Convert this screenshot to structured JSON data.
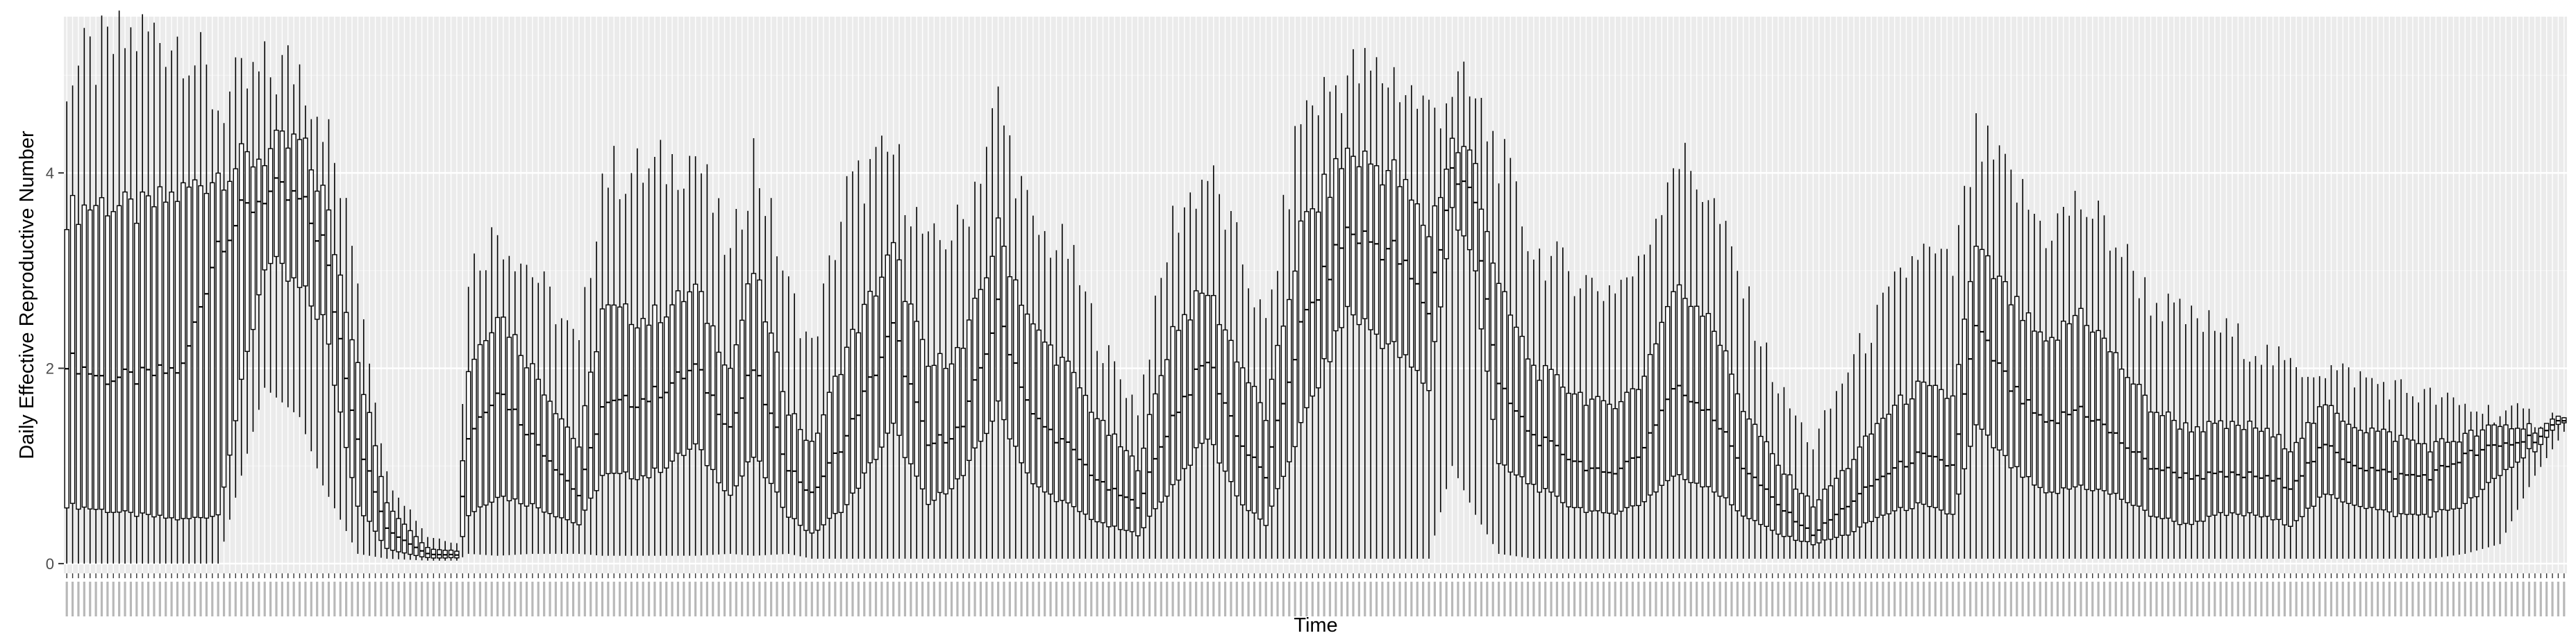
{
  "chart_data": {
    "type": "boxplot",
    "title": "",
    "xlabel": "Time",
    "ylabel": "Daily Effective Reproductive Number",
    "ylim": [
      -0.1,
      5.6
    ],
    "y_ticks": [
      0,
      2,
      4
    ],
    "x_tick_labels": "unreadable (one per day, rotated, overprinted)",
    "grid": true,
    "n_days_approx": 430,
    "series": [
      {
        "name": "",
        "color": "#000000",
        "keypoints": [
          {
            "i": 0,
            "q0": 0.0,
            "q1": 0.6,
            "med": 2.1,
            "q3": 3.6,
            "q4": 5.0
          },
          {
            "i": 6,
            "q0": 0.0,
            "q1": 0.55,
            "med": 1.9,
            "q3": 3.7,
            "q4": 5.2
          },
          {
            "i": 12,
            "q0": 0.0,
            "q1": 0.5,
            "med": 1.9,
            "q3": 3.6,
            "q4": 5.4
          },
          {
            "i": 20,
            "q0": 0.0,
            "q1": 0.45,
            "med": 2.0,
            "q3": 3.8,
            "q4": 5.4
          },
          {
            "i": 26,
            "q0": 0.0,
            "q1": 0.5,
            "med": 3.3,
            "q3": 4.0,
            "q4": 4.7
          },
          {
            "i": 34,
            "q0": 1.8,
            "q1": 3.1,
            "med": 3.8,
            "q3": 4.2,
            "q4": 5.0
          },
          {
            "i": 40,
            "q0": 1.5,
            "q1": 2.8,
            "med": 3.7,
            "q3": 4.3,
            "q4": 5.1
          },
          {
            "i": 44,
            "q0": 0.8,
            "q1": 2.5,
            "med": 3.3,
            "q3": 3.8,
            "q4": 4.6
          },
          {
            "i": 50,
            "q0": 0.1,
            "q1": 0.6,
            "med": 1.3,
            "q3": 2.1,
            "q4": 3.0
          },
          {
            "i": 55,
            "q0": 0.05,
            "q1": 0.15,
            "med": 0.35,
            "q3": 0.6,
            "q4": 0.9
          },
          {
            "i": 62,
            "q0": 0.03,
            "q1": 0.06,
            "med": 0.1,
            "q3": 0.16,
            "q4": 0.28
          },
          {
            "i": 67,
            "q0": 0.03,
            "q1": 0.06,
            "med": 0.09,
            "q3": 0.13,
            "q4": 0.22
          },
          {
            "i": 69,
            "q0": 0.1,
            "q1": 0.5,
            "med": 1.3,
            "q3": 2.0,
            "q4": 3.0
          },
          {
            "i": 74,
            "q0": 0.08,
            "q1": 0.7,
            "med": 1.8,
            "q3": 2.6,
            "q4": 3.4
          },
          {
            "i": 80,
            "q0": 0.1,
            "q1": 0.6,
            "med": 1.3,
            "q3": 2.0,
            "q4": 3.0
          },
          {
            "i": 88,
            "q0": 0.1,
            "q1": 0.4,
            "med": 0.7,
            "q3": 1.2,
            "q4": 2.2
          },
          {
            "i": 92,
            "q0": 0.08,
            "q1": 0.9,
            "med": 1.6,
            "q3": 2.6,
            "q4": 4.0
          },
          {
            "i": 100,
            "q0": 0.08,
            "q1": 0.9,
            "med": 1.7,
            "q3": 2.5,
            "q4": 4.0
          },
          {
            "i": 108,
            "q0": 0.08,
            "q1": 1.2,
            "med": 2.0,
            "q3": 2.8,
            "q4": 4.2
          },
          {
            "i": 114,
            "q0": 0.1,
            "q1": 0.7,
            "med": 1.4,
            "q3": 2.0,
            "q4": 3.1
          },
          {
            "i": 118,
            "q0": 0.08,
            "q1": 1.1,
            "med": 2.0,
            "q3": 3.0,
            "q4": 4.2
          },
          {
            "i": 124,
            "q0": 0.1,
            "q1": 0.5,
            "med": 1.0,
            "q3": 1.6,
            "q4": 2.8
          },
          {
            "i": 128,
            "q0": 0.05,
            "q1": 0.3,
            "med": 0.7,
            "q3": 1.2,
            "q4": 2.2
          },
          {
            "i": 134,
            "q0": 0.05,
            "q1": 0.6,
            "med": 1.3,
            "q3": 2.2,
            "q4": 3.8
          },
          {
            "i": 142,
            "q0": 0.05,
            "q1": 1.4,
            "med": 2.4,
            "q3": 3.2,
            "q4": 4.2
          },
          {
            "i": 148,
            "q0": 0.05,
            "q1": 0.6,
            "med": 1.2,
            "q3": 2.0,
            "q4": 3.2
          },
          {
            "i": 154,
            "q0": 0.05,
            "q1": 0.9,
            "med": 1.4,
            "q3": 2.2,
            "q4": 3.5
          },
          {
            "i": 160,
            "q0": 0.05,
            "q1": 1.6,
            "med": 2.6,
            "q3": 3.4,
            "q4": 4.7
          },
          {
            "i": 166,
            "q0": 0.05,
            "q1": 0.8,
            "med": 1.5,
            "q3": 2.4,
            "q4": 3.4
          },
          {
            "i": 172,
            "q0": 0.05,
            "q1": 0.6,
            "med": 1.2,
            "q3": 2.0,
            "q4": 3.2
          },
          {
            "i": 178,
            "q0": 0.05,
            "q1": 0.4,
            "med": 0.8,
            "q3": 1.4,
            "q4": 2.2
          },
          {
            "i": 184,
            "q0": 0.05,
            "q1": 0.3,
            "med": 0.6,
            "q3": 1.0,
            "q4": 1.6
          },
          {
            "i": 190,
            "q0": 0.05,
            "q1": 0.8,
            "med": 1.5,
            "q3": 2.4,
            "q4": 3.5
          },
          {
            "i": 196,
            "q0": 0.05,
            "q1": 1.3,
            "med": 2.1,
            "q3": 2.8,
            "q4": 4.0
          },
          {
            "i": 202,
            "q0": 0.05,
            "q1": 0.6,
            "med": 1.2,
            "q3": 2.0,
            "q4": 3.1
          },
          {
            "i": 206,
            "q0": 0.05,
            "q1": 0.4,
            "med": 0.9,
            "q3": 1.5,
            "q4": 2.4
          },
          {
            "i": 212,
            "q0": 0.05,
            "q1": 1.4,
            "med": 2.4,
            "q3": 3.4,
            "q4": 4.6
          },
          {
            "i": 220,
            "q0": 0.05,
            "q1": 2.6,
            "med": 3.4,
            "q3": 4.2,
            "q4": 5.0
          },
          {
            "i": 228,
            "q0": 0.05,
            "q1": 2.2,
            "med": 3.2,
            "q3": 4.0,
            "q4": 5.0
          },
          {
            "i": 234,
            "q0": 0.05,
            "q1": 1.8,
            "med": 2.6,
            "q3": 3.4,
            "q4": 4.6
          },
          {
            "i": 238,
            "q0": 1.0,
            "q1": 3.6,
            "med": 4.0,
            "q3": 4.3,
            "q4": 4.9
          },
          {
            "i": 242,
            "q0": 0.5,
            "q1": 3.0,
            "med": 3.7,
            "q3": 4.1,
            "q4": 4.7
          },
          {
            "i": 246,
            "q0": 0.1,
            "q1": 1.0,
            "med": 1.8,
            "q3": 2.8,
            "q4": 4.2
          },
          {
            "i": 252,
            "q0": 0.05,
            "q1": 0.8,
            "med": 1.3,
            "q3": 2.0,
            "q4": 3.2
          },
          {
            "i": 258,
            "q0": 0.05,
            "q1": 0.6,
            "med": 1.1,
            "q3": 1.8,
            "q4": 3.0
          },
          {
            "i": 264,
            "q0": 0.05,
            "q1": 0.5,
            "med": 0.9,
            "q3": 1.6,
            "q4": 2.8
          },
          {
            "i": 270,
            "q0": 0.05,
            "q1": 0.6,
            "med": 1.1,
            "q3": 1.8,
            "q4": 3.0
          },
          {
            "i": 276,
            "q0": 0.05,
            "q1": 0.9,
            "med": 1.8,
            "q3": 2.8,
            "q4": 4.2
          },
          {
            "i": 282,
            "q0": 0.05,
            "q1": 0.8,
            "med": 1.6,
            "q3": 2.6,
            "q4": 3.8
          },
          {
            "i": 288,
            "q0": 0.05,
            "q1": 0.5,
            "med": 1.0,
            "q3": 1.6,
            "q4": 2.8
          },
          {
            "i": 294,
            "q0": 0.05,
            "q1": 0.3,
            "med": 0.6,
            "q3": 1.0,
            "q4": 1.8
          },
          {
            "i": 300,
            "q0": 0.05,
            "q1": 0.2,
            "med": 0.3,
            "q3": 0.6,
            "q4": 1.2
          },
          {
            "i": 306,
            "q0": 0.05,
            "q1": 0.3,
            "med": 0.6,
            "q3": 1.0,
            "q4": 2.0
          },
          {
            "i": 312,
            "q0": 0.05,
            "q1": 0.5,
            "med": 0.9,
            "q3": 1.5,
            "q4": 2.6
          },
          {
            "i": 318,
            "q0": 0.05,
            "q1": 0.6,
            "med": 1.1,
            "q3": 1.8,
            "q4": 3.2
          },
          {
            "i": 324,
            "q0": 0.05,
            "q1": 0.5,
            "med": 1.0,
            "q3": 1.7,
            "q4": 3.0
          },
          {
            "i": 328,
            "q0": 0.05,
            "q1": 1.4,
            "med": 2.4,
            "q3": 3.2,
            "q4": 4.3
          },
          {
            "i": 334,
            "q0": 0.05,
            "q1": 1.0,
            "med": 1.8,
            "q3": 2.7,
            "q4": 3.9
          },
          {
            "i": 340,
            "q0": 0.05,
            "q1": 0.7,
            "med": 1.4,
            "q3": 2.2,
            "q4": 3.4
          },
          {
            "i": 346,
            "q0": 0.05,
            "q1": 0.8,
            "med": 1.6,
            "q3": 2.6,
            "q4": 3.7
          },
          {
            "i": 352,
            "q0": 0.05,
            "q1": 0.7,
            "med": 1.3,
            "q3": 2.1,
            "q4": 3.3
          },
          {
            "i": 358,
            "q0": 0.05,
            "q1": 0.5,
            "med": 1.0,
            "q3": 1.6,
            "q4": 2.7
          },
          {
            "i": 364,
            "q0": 0.05,
            "q1": 0.4,
            "med": 0.9,
            "q3": 1.4,
            "q4": 2.5
          },
          {
            "i": 370,
            "q0": 0.05,
            "q1": 0.5,
            "med": 0.9,
            "q3": 1.4,
            "q4": 2.4
          },
          {
            "i": 376,
            "q0": 0.05,
            "q1": 0.5,
            "med": 0.9,
            "q3": 1.4,
            "q4": 2.2
          },
          {
            "i": 382,
            "q0": 0.05,
            "q1": 0.4,
            "med": 0.8,
            "q3": 1.2,
            "q4": 2.0
          },
          {
            "i": 388,
            "q0": 0.05,
            "q1": 0.7,
            "med": 1.2,
            "q3": 1.6,
            "q4": 2.0
          },
          {
            "i": 394,
            "q0": 0.05,
            "q1": 0.6,
            "med": 1.0,
            "q3": 1.4,
            "q4": 1.9
          },
          {
            "i": 400,
            "q0": 0.05,
            "q1": 0.5,
            "med": 0.9,
            "q3": 1.3,
            "q4": 1.8
          },
          {
            "i": 406,
            "q0": 0.05,
            "q1": 0.5,
            "med": 0.9,
            "q3": 1.2,
            "q4": 1.7
          },
          {
            "i": 412,
            "q0": 0.1,
            "q1": 0.6,
            "med": 1.1,
            "q3": 1.3,
            "q4": 1.6
          },
          {
            "i": 418,
            "q0": 0.2,
            "q1": 0.9,
            "med": 1.2,
            "q3": 1.4,
            "q4": 1.55
          },
          {
            "i": 424,
            "q0": 0.9,
            "q1": 1.2,
            "med": 1.3,
            "q3": 1.4,
            "q4": 1.5
          },
          {
            "i": 429,
            "q0": 1.35,
            "q1": 1.4,
            "med": 1.42,
            "q3": 1.45,
            "q4": 1.48
          }
        ]
      }
    ]
  }
}
